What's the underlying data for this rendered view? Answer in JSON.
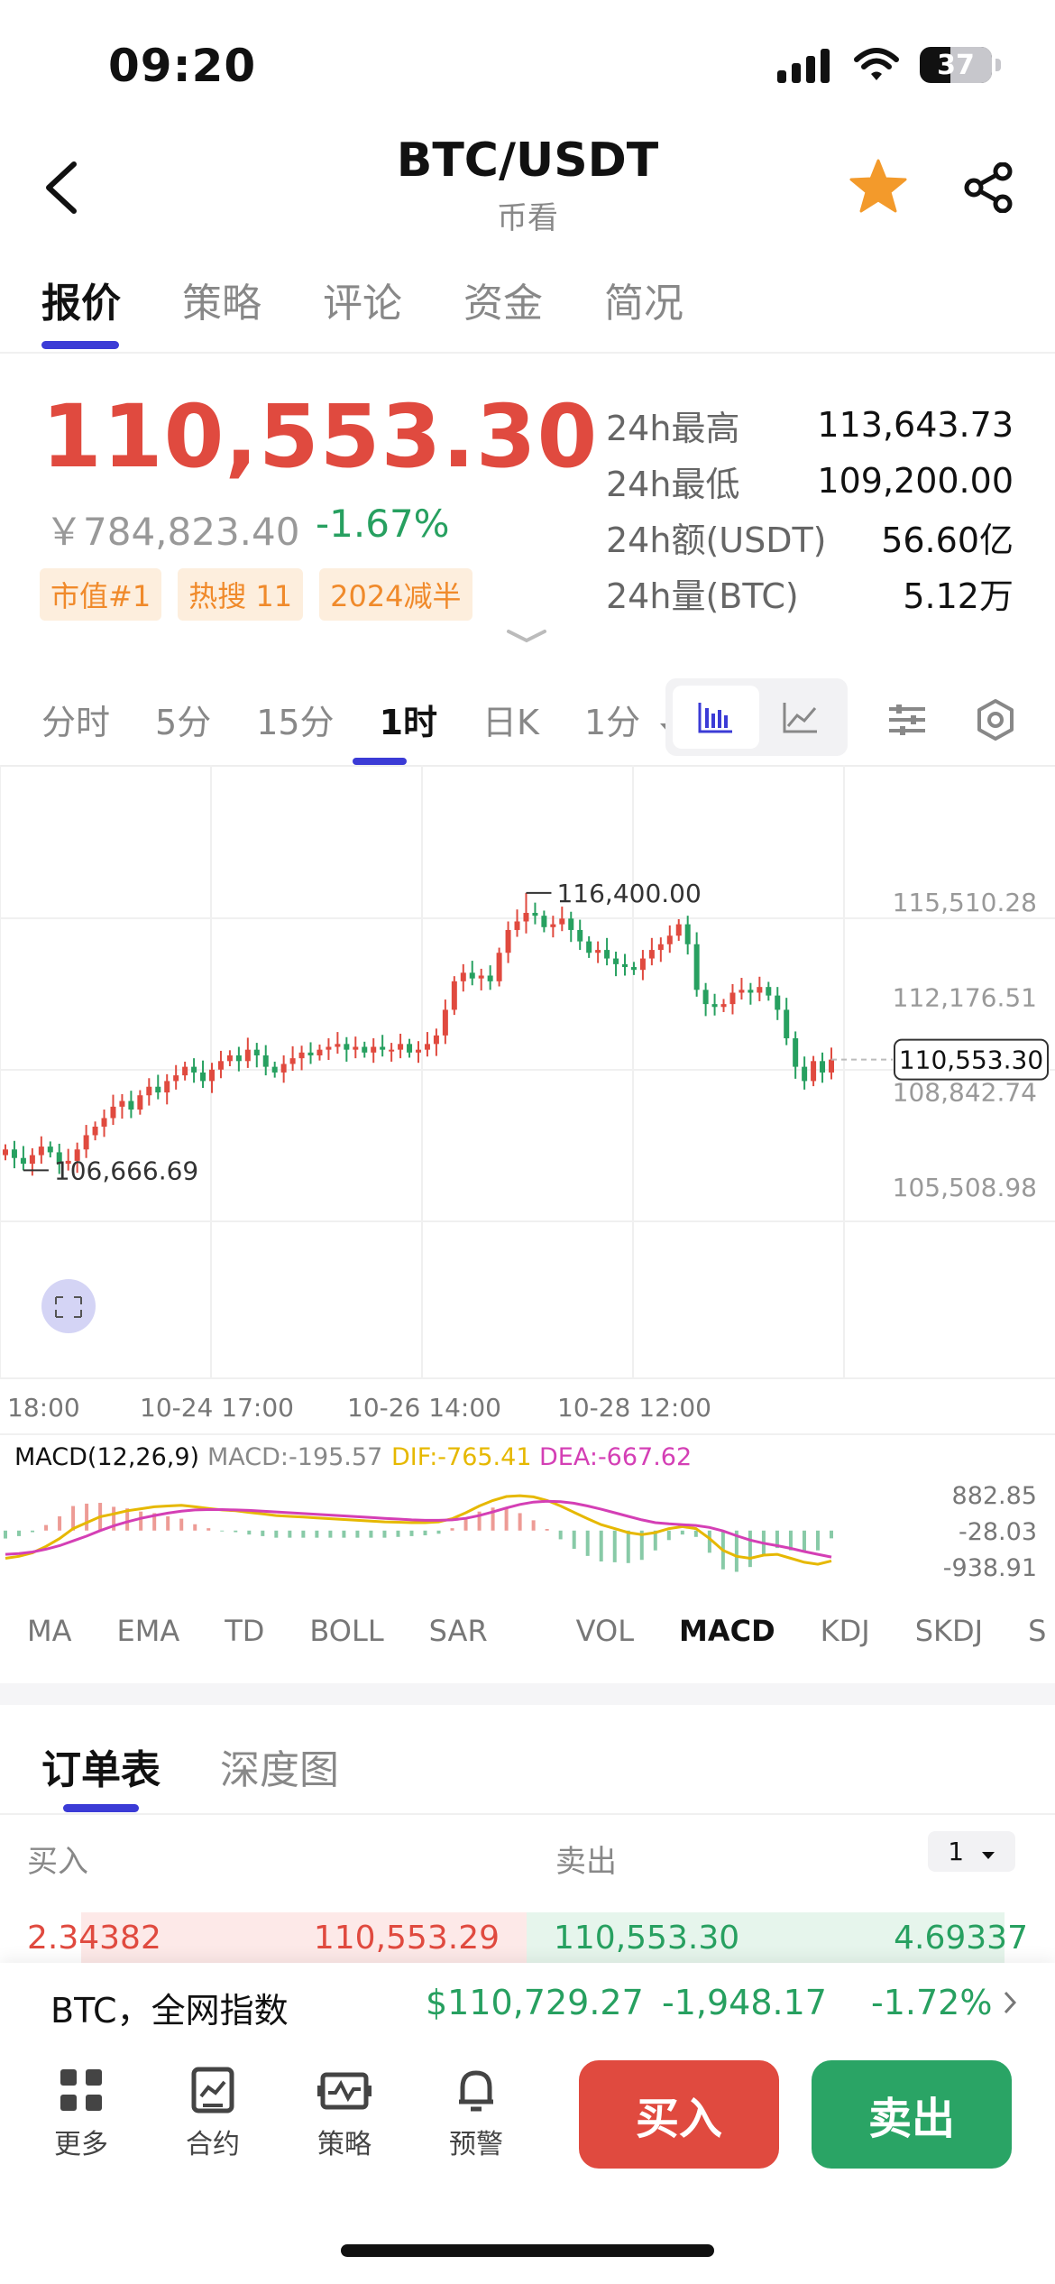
{
  "status_bar": {
    "time": "09:20",
    "battery": "37"
  },
  "header": {
    "title": "BTC/USDT",
    "subtitle": "币看"
  },
  "main_tabs": [
    {
      "label": "报价",
      "active": true
    },
    {
      "label": "策略"
    },
    {
      "label": "评论"
    },
    {
      "label": "资金"
    },
    {
      "label": "简况"
    }
  ],
  "quote": {
    "price": "110,553.30",
    "cny_price": "￥784,823.40",
    "change_pct": "-1.67%",
    "badges": [
      "市值#1",
      "热搜 11",
      "2024减半"
    ],
    "stats": [
      {
        "label": "24h最高",
        "value": "113,643.73"
      },
      {
        "label": "24h最低",
        "value": "109,200.00"
      },
      {
        "label": "24h额(USDT)",
        "value": "56.60亿"
      },
      {
        "label": "24h量(BTC)",
        "value": "5.12万"
      }
    ]
  },
  "intervals": {
    "items": [
      "分时",
      "5分",
      "15分",
      "1时",
      "日K",
      "1分"
    ],
    "active": "1时",
    "dropdown_item": "1分"
  },
  "colors": {
    "up": "#e04a3f",
    "down": "#27a060",
    "accent": "#3b3bd6",
    "badge": "#f08a2b",
    "dif": "#e6b800",
    "dea": "#d43fb5"
  },
  "chart_data": {
    "type": "candlestick",
    "interval": "1h",
    "y_ticks": [
      "115,510.28",
      "112,176.51",
      "108,842.74",
      "105,508.98"
    ],
    "y_tick_values": [
      115510.28,
      112176.51,
      108842.74,
      105508.98
    ],
    "x_ticks": [
      "18:00",
      "10-24 17:00",
      "10-26 14:00",
      "10-28 12:00"
    ],
    "high_label": "116,400.00",
    "high_value": 116400.0,
    "low_label": "106,666.69",
    "low_value": 106666.69,
    "last_price_label": "110,553.30",
    "last_price_value": 110553.3,
    "closes": [
      107400,
      107100,
      106900,
      107200,
      107500,
      107300,
      106900,
      107000,
      107400,
      107900,
      108200,
      108500,
      108900,
      109100,
      108800,
      109300,
      109600,
      109400,
      109800,
      110000,
      110300,
      110100,
      109800,
      110200,
      110500,
      110700,
      110500,
      110900,
      110700,
      110300,
      110100,
      110400,
      110600,
      110800,
      110700,
      110900,
      111000,
      111100,
      110900,
      111000,
      110800,
      111000,
      110900,
      110900,
      111100,
      110800,
      110900,
      111100,
      111400,
      112300,
      113300,
      113600,
      113400,
      113500,
      113300,
      114300,
      115100,
      115400,
      115700,
      115600,
      115200,
      115300,
      115500,
      115100,
      114700,
      114300,
      114400,
      114100,
      113900,
      113800,
      113700,
      114100,
      114400,
      114600,
      114900,
      115300,
      114600,
      113000,
      112500,
      112400,
      112500,
      112900,
      113000,
      112900,
      113100,
      112800,
      112300,
      111300,
      110300,
      109800,
      110500,
      110100,
      110553.3
    ],
    "macd": {
      "title": "MACD(12,26,9)",
      "macd_label": "MACD:-195.57",
      "dif_label": "DIF:-765.41",
      "dea_label": "DEA:-667.62",
      "y_ticks": [
        "882.85",
        "-28.03",
        "-938.91"
      ],
      "y_tick_values": [
        882.85,
        -28.03,
        -938.91
      ],
      "dif": [
        -700,
        -650,
        -560,
        -400,
        -200,
        50,
        200,
        350,
        420,
        500,
        550,
        600,
        620,
        640,
        600,
        560,
        520,
        500,
        460,
        420,
        380,
        360,
        340,
        320,
        300,
        280,
        260,
        240,
        220,
        210,
        200,
        200,
        220,
        300,
        450,
        620,
        760,
        860,
        880,
        850,
        760,
        620,
        460,
        300,
        150,
        50,
        -50,
        -100,
        -50,
        50,
        100,
        50,
        -200,
        -500,
        -650,
        -700,
        -620,
        -600,
        -700,
        -800,
        -850,
        -765
      ],
      "dea": [
        -600,
        -580,
        -540,
        -470,
        -380,
        -260,
        -140,
        0,
        120,
        220,
        310,
        380,
        440,
        490,
        520,
        530,
        530,
        520,
        510,
        490,
        470,
        450,
        430,
        410,
        390,
        370,
        350,
        330,
        310,
        290,
        270,
        260,
        260,
        270,
        310,
        380,
        470,
        570,
        660,
        720,
        740,
        730,
        690,
        620,
        540,
        450,
        360,
        270,
        200,
        170,
        150,
        130,
        80,
        -10,
        -130,
        -240,
        -320,
        -380,
        -450,
        -530,
        -600,
        -667
      ]
    }
  },
  "indicator_tabs": {
    "main": [
      "MA",
      "EMA",
      "TD",
      "BOLL",
      "SAR"
    ],
    "sub": [
      "VOL",
      "MACD",
      "KDJ",
      "SKDJ",
      "S"
    ],
    "active": "MACD"
  },
  "order_book": {
    "tabs": [
      "订单表",
      "深度图"
    ],
    "active_tab": "订单表",
    "buy_header": "买入",
    "sell_header": "卖出",
    "depth_select": "1",
    "row": {
      "buy_qty": "2.34382",
      "buy_price": "110,553.29",
      "sell_price": "110,553.30",
      "sell_qty": "4.69337"
    }
  },
  "index_bar": {
    "label": "BTC，全网指数",
    "price": "$110,729.27",
    "change": "-1,948.17",
    "pct": "-1.72%"
  },
  "bottom_nav": [
    {
      "label": "更多",
      "icon": "grid-icon"
    },
    {
      "label": "合约",
      "icon": "contract-icon"
    },
    {
      "label": "策略",
      "icon": "strategy-icon"
    },
    {
      "label": "预警",
      "icon": "bell-icon"
    }
  ],
  "actions": {
    "buy": "买入",
    "sell": "卖出"
  }
}
